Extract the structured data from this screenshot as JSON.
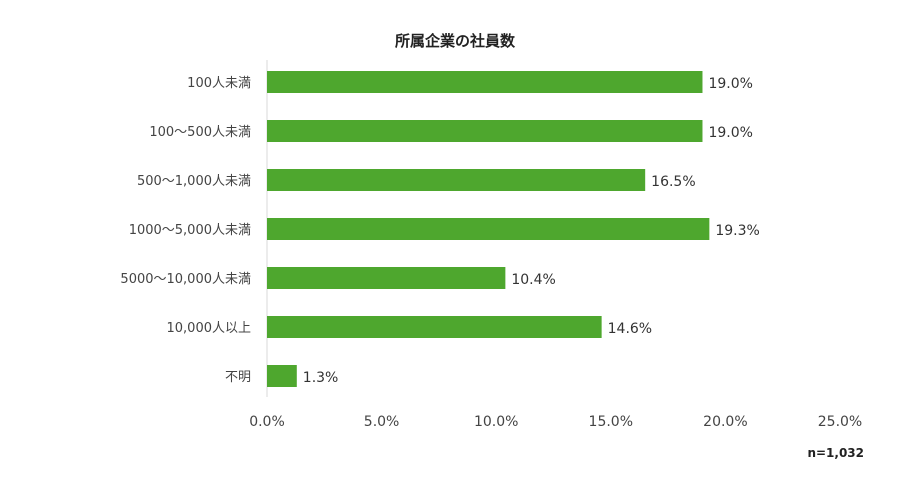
{
  "chart_data": {
    "type": "bar",
    "orientation": "horizontal",
    "title": "所属企業の社員数",
    "categories": [
      "100人未満",
      "100～500人未満",
      "500～1,000人未満",
      "1000～5,000人未満",
      "5000～10,000人未満",
      "10,000人以上",
      "不明"
    ],
    "values": [
      19.0,
      19.0,
      16.5,
      19.3,
      10.4,
      14.6,
      1.3
    ],
    "value_labels": [
      "19.0%",
      "19.0%",
      "16.5%",
      "19.3%",
      "10.4%",
      "14.6%",
      "1.3%"
    ],
    "xlim": [
      0,
      25
    ],
    "xticks": [
      0,
      5,
      10,
      15,
      20,
      25
    ],
    "xtick_labels": [
      "0.0%",
      "5.0%",
      "10.0%",
      "15.0%",
      "20.0%",
      "25.0%"
    ],
    "grid": false,
    "bar_color": "#4ea72e",
    "note": "n=1,032"
  }
}
